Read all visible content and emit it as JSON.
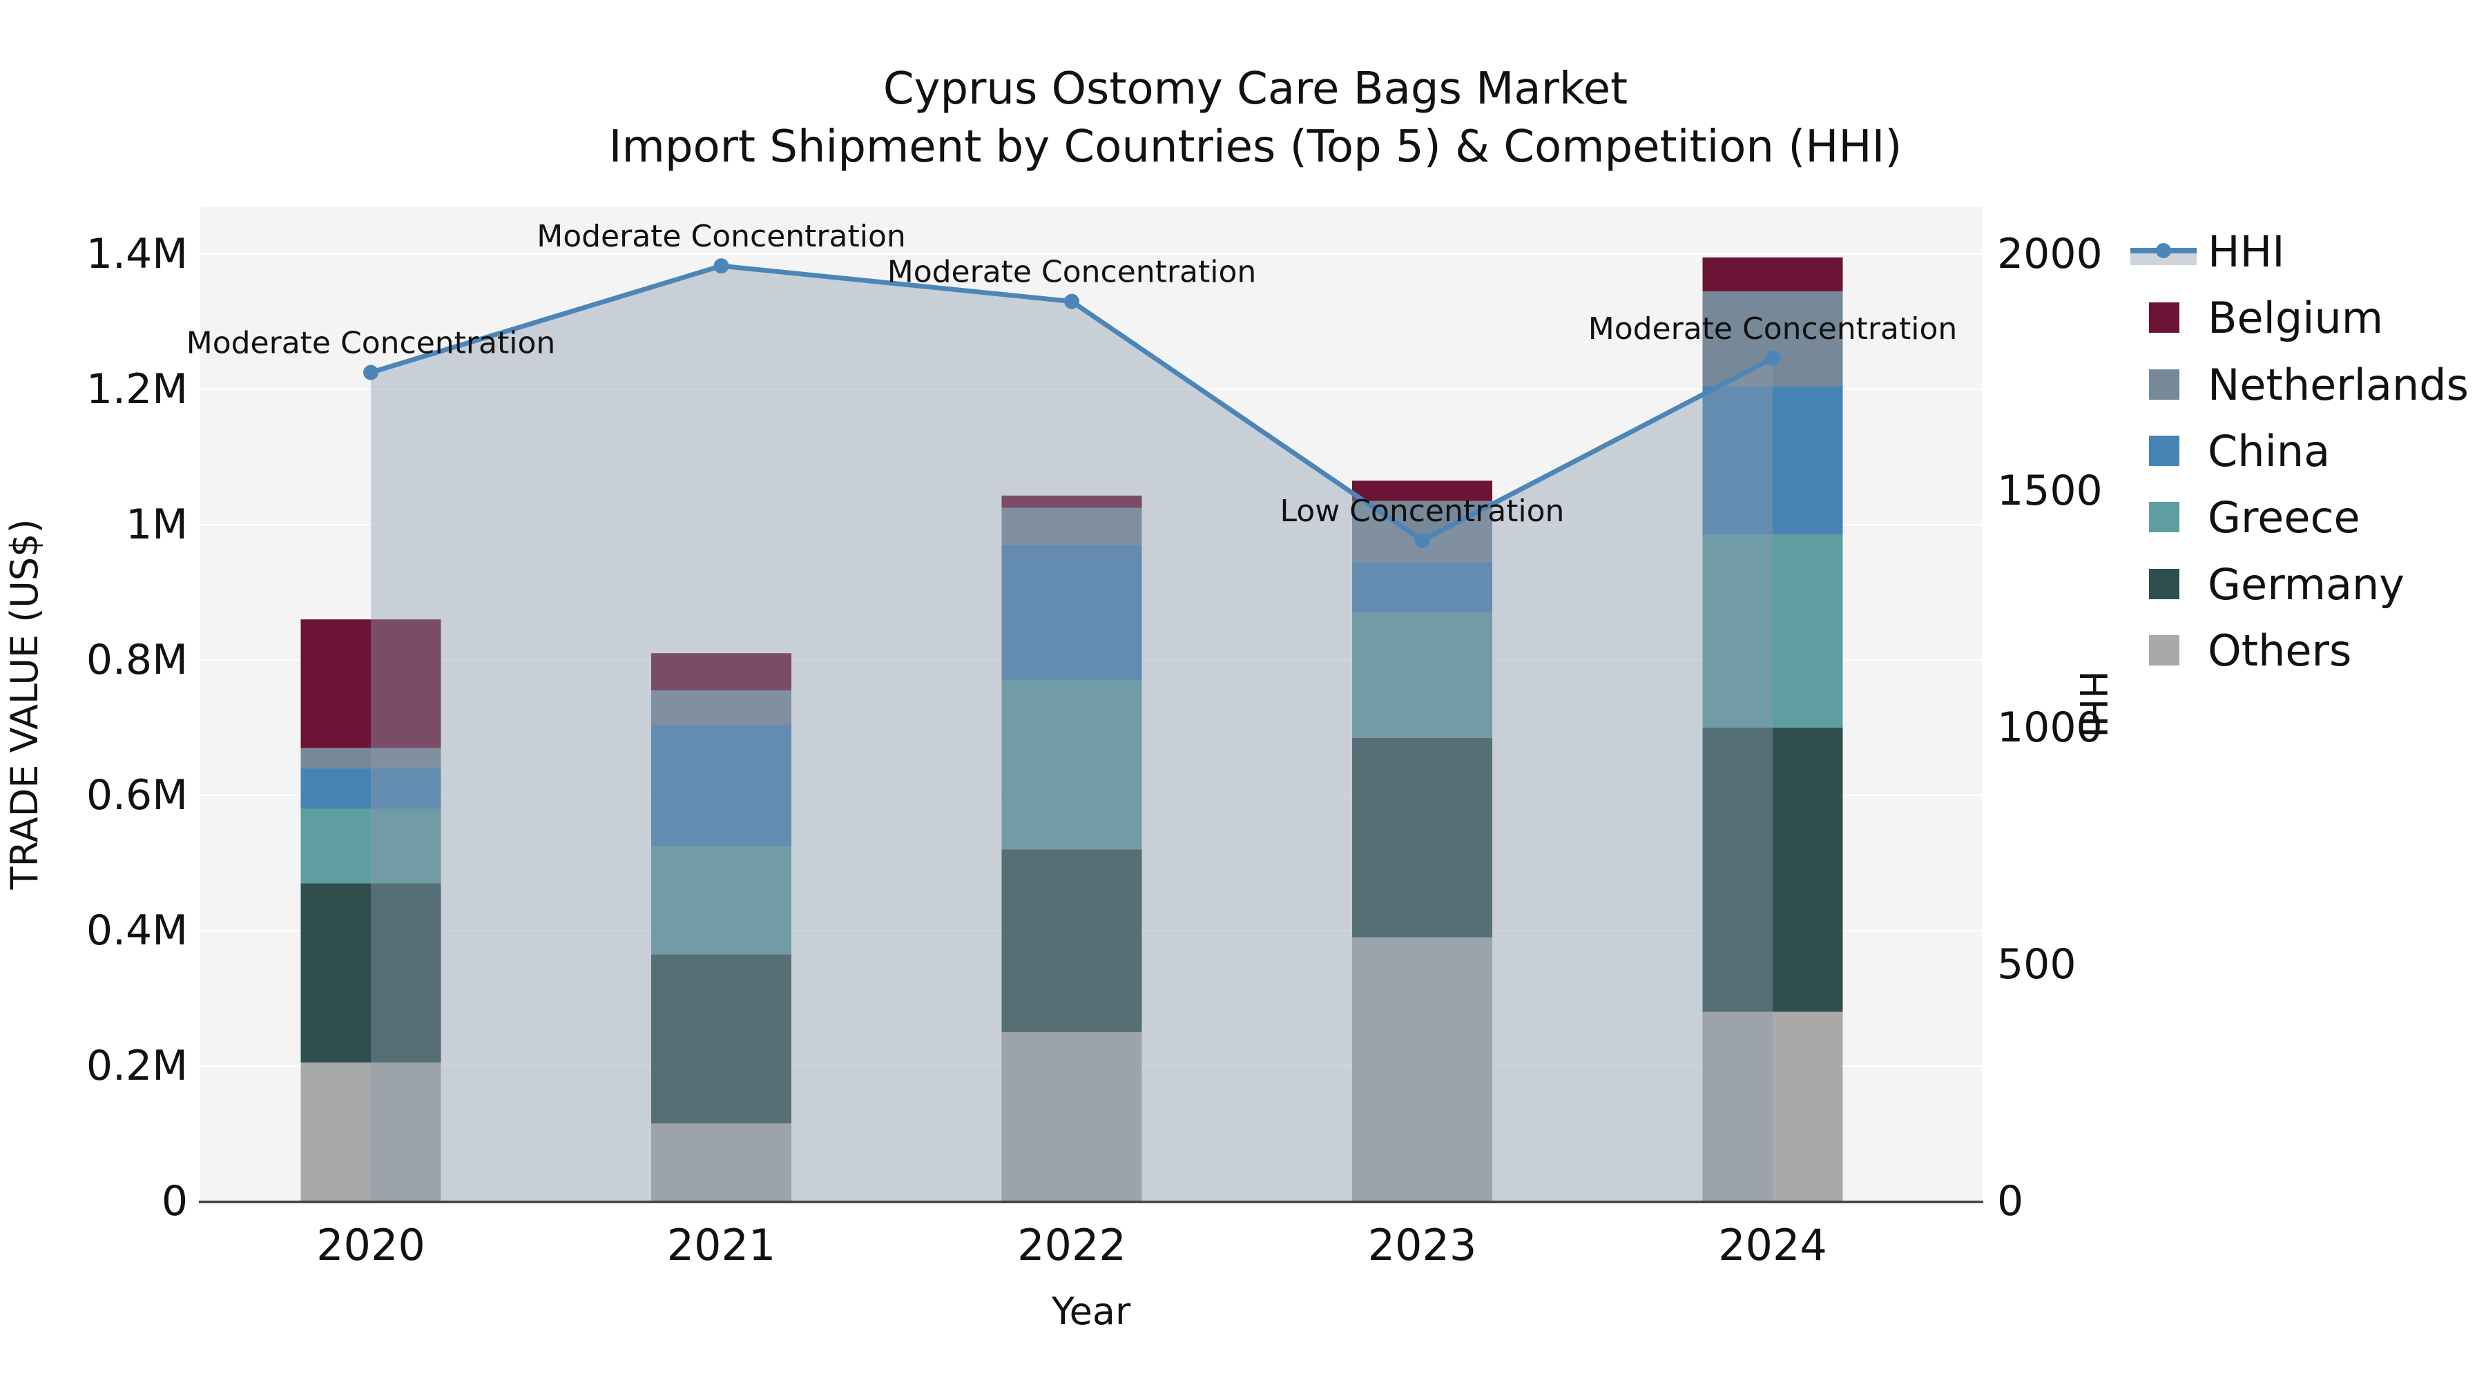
{
  "title": {
    "line1": "Cyprus Ostomy Care Bags Market",
    "line2": "Import Shipment by Countries (Top 5) & Competition (HHI)"
  },
  "axes": {
    "left": {
      "label": "TRADE VALUE (US$)",
      "ticks": [
        "0",
        "0.2M",
        "0.4M",
        "0.6M",
        "0.8M",
        "1M",
        "1.2M",
        "1.4M"
      ]
    },
    "right": {
      "label": "HHI",
      "ticks": [
        "0",
        "500",
        "1000",
        "1500",
        "2000"
      ]
    },
    "x": {
      "label": "Year"
    }
  },
  "legend": {
    "items": [
      {
        "label": "HHI",
        "color": "#4C86B8",
        "type": "line"
      },
      {
        "label": "Belgium",
        "color": "#6B1436",
        "type": "swatch"
      },
      {
        "label": "Netherlands",
        "color": "#778899",
        "type": "swatch"
      },
      {
        "label": "China",
        "color": "#4682B4",
        "type": "swatch"
      },
      {
        "label": "Greece",
        "color": "#5F9EA0",
        "type": "swatch"
      },
      {
        "label": "Germany",
        "color": "#2F4F4F",
        "type": "swatch"
      },
      {
        "label": "Others",
        "color": "#A9A9A9",
        "type": "swatch"
      }
    ],
    "hhi_band_color": "#CFD4DA"
  },
  "colors": {
    "figure_bg": "#FFFFFF",
    "plot_bg": "#F4F4F5",
    "gridline": "rgba(255,255,255,0.9)",
    "spine": "#3F3F3F",
    "text": "#111111"
  },
  "chart_data": {
    "type": "bar+line",
    "title": "Cyprus Ostomy Care Bags Market — Import Shipment by Countries (Top 5) & Competition (HHI)",
    "categories": [
      "2020",
      "2021",
      "2022",
      "2023",
      "2024"
    ],
    "unit": "Trade value in millions of US$ (left axis), HHI index (right axis)",
    "stacked_series": [
      {
        "name": "Others",
        "color": "#A9A9A9",
        "values": [
          0.205,
          0.115,
          0.25,
          0.39,
          0.28
        ]
      },
      {
        "name": "Germany",
        "color": "#2F4F4F",
        "values": [
          0.265,
          0.25,
          0.27,
          0.295,
          0.42
        ]
      },
      {
        "name": "Greece",
        "color": "#5F9EA0",
        "values": [
          0.11,
          0.16,
          0.25,
          0.185,
          0.285
        ]
      },
      {
        "name": "China",
        "color": "#4682B4",
        "values": [
          0.06,
          0.18,
          0.2,
          0.075,
          0.22
        ]
      },
      {
        "name": "Netherlands",
        "color": "#778899",
        "values": [
          0.03,
          0.05,
          0.055,
          0.09,
          0.14
        ]
      },
      {
        "name": "Belgium",
        "color": "#6B1436",
        "values": [
          0.19,
          0.055,
          0.018,
          0.03,
          0.05
        ]
      }
    ],
    "bar_totals_M": [
      0.86,
      0.81,
      1.043,
      1.065,
      1.395
    ],
    "line_series": {
      "name": "HHI",
      "color": "#4C86B8",
      "area_fill": "rgba(141,155,172,0.42)",
      "values": [
        1750,
        1975,
        1900,
        1395,
        1780
      ]
    },
    "annotations": [
      "Moderate Concentration",
      "Moderate Concentration",
      "Moderate Concentration",
      "Low Concentration",
      "Moderate Concentration"
    ],
    "ylabel": "TRADE VALUE (US$)",
    "y2label": "HHI",
    "xlabel": "Year",
    "ylim_left_M": [
      0,
      1.47
    ],
    "ylim_right": [
      0,
      2100
    ],
    "legend_position": "right",
    "grid": "horizontal white gridlines every 0.2M on light gray plot background"
  }
}
